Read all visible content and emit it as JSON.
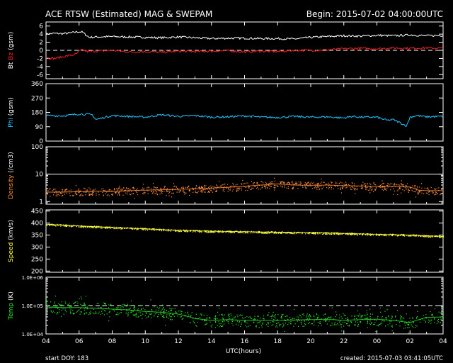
{
  "header": {
    "title": "ACE RTSW (Estimated) MAG & SWEPAM",
    "begin": "Begin: 2015-07-02 04:00:00UTC"
  },
  "footer": {
    "start_doy": "start DOY: 183",
    "xlabel": "UTC(hours)",
    "created": "created: 2015-07-03 03:41:05UTC"
  },
  "colors": {
    "background": "#000000",
    "axes": "#ffffff",
    "bt": "#ffffff",
    "bz": "#ff2020",
    "phi": "#1ec8ff",
    "density": "#ff8c3c",
    "speed": "#ffff3c",
    "temp": "#28e628"
  },
  "chart_data": {
    "type": "line",
    "x_axis": {
      "ticks": [
        "04",
        "06",
        "08",
        "10",
        "12",
        "14",
        "16",
        "18",
        "20",
        "22",
        "00",
        "02",
        "04"
      ],
      "range_hours": [
        0,
        24
      ]
    },
    "panels": [
      {
        "key": "mag",
        "ylabel_parts": [
          "Bt",
          "Bz",
          "(gsm)"
        ],
        "ylim": [
          -7,
          7
        ],
        "scale": "linear",
        "yticks": [
          "6",
          "4",
          "2",
          "0",
          "-2",
          "-4",
          "-6"
        ],
        "ytick_values": [
          6,
          4,
          2,
          0,
          -2,
          -4,
          -6
        ],
        "ref_line": 0,
        "series": [
          {
            "name": "Bt",
            "color_key": "bt",
            "x": [
              0,
              0.5,
              1,
              1.5,
              1.9,
              2.2,
              2.6,
              3,
              4,
              5,
              6,
              7,
              8,
              9,
              10,
              11,
              12,
              13,
              14,
              15,
              16,
              17,
              18,
              19,
              20,
              21,
              22,
              23,
              24
            ],
            "y": [
              4.0,
              4.2,
              4.1,
              4.3,
              4.6,
              4.5,
              3.2,
              3.3,
              3.4,
              3.3,
              3.2,
              3.1,
              3.3,
              3.1,
              2.9,
              3.0,
              3.0,
              2.9,
              2.9,
              2.8,
              3.2,
              3.4,
              3.6,
              3.5,
              3.7,
              3.6,
              3.8,
              3.6,
              3.7
            ]
          },
          {
            "name": "Bz",
            "color_key": "bz",
            "x": [
              0,
              0.5,
              1,
              1.5,
              1.8,
              2.0,
              2.2,
              2.5,
              3,
              4,
              5,
              6,
              7,
              8,
              9,
              10,
              11,
              12,
              13,
              14,
              15,
              16,
              17,
              18,
              19,
              20,
              21,
              22,
              23,
              24
            ],
            "y": [
              -1.8,
              -2.0,
              -1.6,
              -1.2,
              -1.0,
              -0.2,
              0.1,
              -0.3,
              -0.2,
              0.0,
              -0.4,
              -0.3,
              -0.5,
              -0.2,
              -0.3,
              -0.2,
              -0.1,
              -0.4,
              -0.2,
              -0.3,
              0.0,
              0.0,
              0.1,
              0.4,
              0.5,
              0.4,
              0.6,
              0.5,
              0.6,
              0.5
            ]
          }
        ]
      },
      {
        "key": "phi",
        "ylabel_parts": [
          "Phi",
          "(gsm)"
        ],
        "ylim": [
          0,
          360
        ],
        "scale": "linear",
        "yticks": [
          "360",
          "270",
          "180",
          "90",
          "0"
        ],
        "ytick_values": [
          360,
          270,
          180,
          90,
          0
        ],
        "series": [
          {
            "name": "Phi",
            "color_key": "phi",
            "x": [
              0,
              1,
              2,
              2.8,
              3,
              4,
              5,
              6,
              7,
              8,
              9,
              10,
              11,
              12,
              13,
              14,
              15,
              16,
              17,
              18,
              18.5,
              19,
              20,
              20.6,
              21,
              21.5,
              21.8,
              22,
              22.4,
              23,
              24
            ],
            "y": [
              160,
              158,
              170,
              165,
              135,
              160,
              155,
              150,
              165,
              155,
              160,
              150,
              152,
              158,
              150,
              148,
              155,
              150,
              152,
              145,
              155,
              150,
              150,
              130,
              135,
              110,
              95,
              150,
              160,
              152,
              155
            ]
          }
        ]
      },
      {
        "key": "density",
        "ylabel_parts": [
          "Density",
          "(/cm3)"
        ],
        "ylim": [
          0.8,
          100
        ],
        "scale": "log",
        "yticks": [
          "100",
          "10",
          "1"
        ],
        "ytick_values": [
          100,
          10,
          1
        ],
        "ref_line": 10,
        "series": [
          {
            "name": "Density",
            "color_key": "density",
            "x": [
              0,
              1,
              2,
              3,
              4,
              5,
              6,
              7,
              8,
              9,
              10,
              11,
              12,
              13,
              14,
              15,
              16,
              17,
              18,
              19,
              20,
              21,
              22,
              22.5,
              23,
              24
            ],
            "y": [
              2.2,
              2.2,
              2.3,
              2.4,
              2.3,
              2.5,
              2.6,
              2.7,
              2.8,
              2.9,
              3.1,
              3.3,
              3.6,
              4.0,
              4.4,
              4.0,
              3.9,
              4.0,
              3.8,
              3.7,
              3.6,
              3.5,
              3.4,
              2.6,
              2.5,
              2.5
            ]
          }
        ]
      },
      {
        "key": "speed",
        "ylabel_parts": [
          "Speed",
          "(km/s)"
        ],
        "ylim": [
          195,
          455
        ],
        "scale": "linear",
        "yticks": [
          "450",
          "400",
          "350",
          "300",
          "250",
          "200"
        ],
        "ytick_values": [
          450,
          400,
          350,
          300,
          250,
          200
        ],
        "series": [
          {
            "name": "Speed",
            "color_key": "speed",
            "x": [
              0,
              2,
              4,
              6,
              8,
              10,
              12,
              14,
              16,
              18,
              20,
              22,
              24
            ],
            "y": [
              395,
              388,
              382,
              376,
              370,
              366,
              364,
              362,
              360,
              357,
              353,
              350,
              344
            ]
          }
        ]
      },
      {
        "key": "temp",
        "ylabel_parts": [
          "Temp",
          "(K)"
        ],
        "ylim": [
          10000,
          1000000
        ],
        "scale": "log",
        "yticks": [
          "1.0E+06",
          "1.0E+05",
          "1.0E+04"
        ],
        "ytick_values": [
          1000000,
          100000,
          10000
        ],
        "ref_line": 100000,
        "series": [
          {
            "name": "Temp",
            "color_key": "temp",
            "x": [
              0,
              1,
              2,
              3,
              4,
              5,
              6,
              7,
              8,
              9,
              10,
              11,
              12,
              13,
              14,
              15,
              16,
              17,
              18,
              19,
              20,
              21,
              22,
              23,
              24
            ],
            "y": [
              90000,
              85000,
              85000,
              80000,
              75000,
              70000,
              62000,
              58000,
              50000,
              35000,
              30000,
              32000,
              30000,
              30000,
              30000,
              31000,
              32000,
              33000,
              30000,
              32000,
              33000,
              30000,
              25000,
              38000,
              40000
            ]
          }
        ]
      }
    ]
  }
}
